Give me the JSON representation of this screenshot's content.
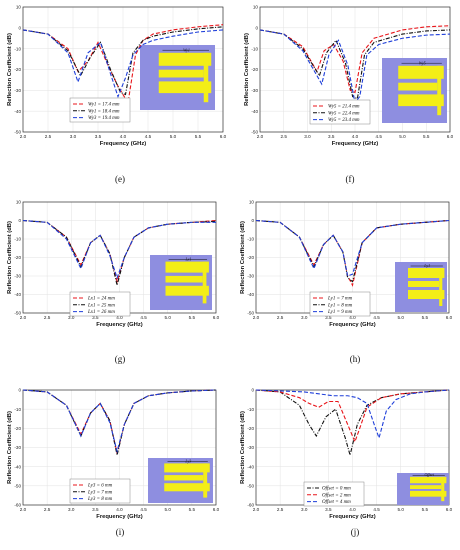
{
  "chart_data": [
    {
      "type": "line",
      "panel_label": "(e)",
      "xlabel": "Frequency (GHz)",
      "ylabel": "Reflection Coefficient (dB)",
      "xlim": [
        2.0,
        6.0
      ],
      "ylim": [
        -50,
        10
      ],
      "xticks": [
        "2.0",
        "2.5",
        "3.0",
        "3.5",
        "4.0",
        "4.5",
        "5.0",
        "5.5",
        "6.0"
      ],
      "yticks": [
        "10",
        "0",
        "-10",
        "-20",
        "-30",
        "-40",
        "-50"
      ],
      "legend_position": "bottom-left",
      "inset_label": "Wy1",
      "series": [
        {
          "name": "Wy1 = 17.4 mm",
          "color": "#e8161b",
          "dash": "dash",
          "x": [
            2.0,
            2.5,
            2.9,
            3.1,
            3.3,
            3.5,
            3.7,
            3.9,
            4.1,
            4.25,
            4.4,
            4.6,
            5.0,
            5.5,
            6.0
          ],
          "y": [
            -1,
            -3,
            -10,
            -21,
            -16,
            -7,
            -18,
            -28,
            -36,
            -13,
            -6,
            -3,
            -1,
            0.5,
            1.5
          ]
        },
        {
          "name": "Wy1 = 18.4 mm",
          "color": "#111111",
          "dash": "dashdot",
          "x": [
            2.0,
            2.5,
            2.9,
            3.15,
            3.35,
            3.55,
            3.75,
            3.95,
            4.05,
            4.2,
            4.4,
            4.6,
            5.0,
            5.5,
            6.0
          ],
          "y": [
            -1,
            -3,
            -11,
            -23,
            -14,
            -7,
            -20,
            -31,
            -32,
            -12,
            -6,
            -4,
            -2,
            -0.5,
            0.5
          ]
        },
        {
          "name": "Wy3 = 19.4 mm",
          "color": "#1f3fd9",
          "dash": "dash",
          "x": [
            2.0,
            2.5,
            2.9,
            3.1,
            3.3,
            3.55,
            3.75,
            3.9,
            4.05,
            4.2,
            4.4,
            4.6,
            5.0,
            5.5,
            6.0
          ],
          "y": [
            -1,
            -3,
            -12,
            -26,
            -12,
            -7,
            -22,
            -33,
            -24,
            -13,
            -8,
            -6,
            -4,
            -2,
            -1
          ]
        }
      ]
    },
    {
      "type": "line",
      "panel_label": "(f)",
      "xlabel": "Frequency (GHz)",
      "ylabel": "Reflection Coefficient (dB)",
      "xlim": [
        2.0,
        6.0
      ],
      "ylim": [
        -50,
        10
      ],
      "xticks": [
        "2.0",
        "2.5",
        "3.0",
        "3.5",
        "4.0",
        "4.5",
        "5.0",
        "5.5",
        "6.0"
      ],
      "yticks": [
        "10",
        "0",
        "-10",
        "-20",
        "-30",
        "-40",
        "-50"
      ],
      "legend_position": "bottom-left",
      "inset_label": "Wy5",
      "series": [
        {
          "name": "Wy5 = 21.4 mm",
          "color": "#e8161b",
          "dash": "dash",
          "x": [
            2.0,
            2.5,
            2.9,
            3.2,
            3.35,
            3.55,
            3.75,
            3.9,
            4.0,
            4.15,
            4.4,
            5.0,
            5.5,
            6.0
          ],
          "y": [
            -1,
            -3,
            -9,
            -21,
            -11,
            -8,
            -16,
            -30,
            -31,
            -12,
            -5,
            -1,
            0.5,
            1
          ]
        },
        {
          "name": "Wy5 = 22.4 mm",
          "color": "#111111",
          "dash": "dashdot",
          "x": [
            2.0,
            2.5,
            2.9,
            3.25,
            3.4,
            3.6,
            3.8,
            3.95,
            4.05,
            4.2,
            4.4,
            5.0,
            5.5,
            6.0
          ],
          "y": [
            -1,
            -3,
            -10,
            -23,
            -12,
            -6,
            -17,
            -33,
            -34,
            -13,
            -7,
            -3,
            -1.5,
            -1
          ]
        },
        {
          "name": "Wy5 = 23.4 mm",
          "color": "#1f3fd9",
          "dash": "dash",
          "x": [
            2.0,
            2.5,
            2.9,
            3.3,
            3.45,
            3.65,
            3.85,
            4.0,
            4.1,
            4.25,
            4.5,
            5.0,
            5.5,
            6.0
          ],
          "y": [
            -1,
            -3,
            -11,
            -27,
            -13,
            -6,
            -18,
            -36,
            -33,
            -13,
            -8,
            -5,
            -3.5,
            -3
          ]
        }
      ]
    },
    {
      "type": "line",
      "panel_label": "(g)",
      "xlabel": "Frequency (GHz)",
      "ylabel": "Reflection Coefficient (dB)",
      "xlim": [
        2.0,
        6.0
      ],
      "ylim": [
        -50,
        10
      ],
      "xticks": [
        "2.0",
        "2.5",
        "3.0",
        "3.5",
        "4.0",
        "4.5",
        "5.0",
        "5.5",
        "6.0"
      ],
      "yticks": [
        "10",
        "0",
        "-10",
        "-20",
        "-30",
        "-40",
        "-50"
      ],
      "legend_position": "bottom-left",
      "inset_label": "Lx1",
      "series": [
        {
          "name": "Lx1 = 24 mm",
          "color": "#e8161b",
          "dash": "dash",
          "x": [
            2.0,
            2.5,
            2.9,
            3.2,
            3.4,
            3.6,
            3.8,
            3.95,
            4.1,
            4.3,
            4.6,
            5.0,
            5.5,
            6.0
          ],
          "y": [
            0,
            -1,
            -9,
            -24,
            -12,
            -8,
            -18,
            -33,
            -20,
            -9,
            -4,
            -2,
            -1,
            0
          ]
        },
        {
          "name": "Lx1 = 25 mm",
          "color": "#111111",
          "dash": "dashdot",
          "x": [
            2.0,
            2.5,
            2.9,
            3.2,
            3.4,
            3.6,
            3.8,
            3.95,
            4.1,
            4.3,
            4.6,
            5.0,
            5.5,
            6.0
          ],
          "y": [
            0,
            -1,
            -9,
            -25,
            -12,
            -8,
            -18,
            -35,
            -20,
            -9,
            -4,
            -2,
            -1,
            -0.5
          ]
        },
        {
          "name": "Lx1 = 26 mm",
          "color": "#1f3fd9",
          "dash": "dash",
          "x": [
            2.0,
            2.5,
            2.9,
            3.2,
            3.4,
            3.6,
            3.8,
            3.95,
            4.1,
            4.3,
            4.6,
            5.0,
            5.5,
            6.0
          ],
          "y": [
            0,
            -1,
            -10,
            -26,
            -12,
            -8,
            -19,
            -31,
            -20,
            -9,
            -4,
            -2,
            -1,
            -1
          ]
        }
      ]
    },
    {
      "type": "line",
      "panel_label": "(h)",
      "xlabel": "Frequency (GHz)",
      "ylabel": "Reflection Coefficient (dB)",
      "xlim": [
        2.0,
        6.0
      ],
      "ylim": [
        -50,
        10
      ],
      "xticks": [
        "2.0",
        "2.5",
        "3.0",
        "3.5",
        "4.0",
        "4.5",
        "5.0",
        "5.5",
        "6.0"
      ],
      "yticks": [
        "10",
        "0",
        "-10",
        "-20",
        "-30",
        "-40",
        "-50"
      ],
      "legend_position": "bottom-left",
      "inset_label": "Ly1",
      "series": [
        {
          "name": "Ly1 = 7 mm",
          "color": "#e8161b",
          "dash": "dash",
          "x": [
            2.0,
            2.5,
            2.9,
            3.2,
            3.4,
            3.6,
            3.8,
            3.9,
            4.0,
            4.2,
            4.5,
            5.0,
            5.5,
            6.0
          ],
          "y": [
            0,
            -1,
            -9,
            -24,
            -13,
            -8,
            -17,
            -30,
            -35,
            -12,
            -4,
            -2,
            -1,
            0
          ]
        },
        {
          "name": "Ly1 = 8 mm",
          "color": "#111111",
          "dash": "dashdot",
          "x": [
            2.0,
            2.5,
            2.9,
            3.2,
            3.4,
            3.6,
            3.8,
            3.9,
            4.0,
            4.2,
            4.5,
            5.0,
            5.5,
            6.0
          ],
          "y": [
            0,
            -1,
            -9,
            -25,
            -13,
            -8,
            -17,
            -31,
            -33,
            -12,
            -4,
            -2,
            -1,
            0
          ]
        },
        {
          "name": "Ly1 = 9 mm",
          "color": "#1f3fd9",
          "dash": "dash",
          "x": [
            2.0,
            2.5,
            2.9,
            3.2,
            3.4,
            3.6,
            3.8,
            3.9,
            4.0,
            4.2,
            4.5,
            5.0,
            5.5,
            6.0
          ],
          "y": [
            0,
            -1,
            -9,
            -26,
            -13,
            -8,
            -17,
            -30,
            -29,
            -12,
            -4,
            -2,
            -1,
            0
          ]
        }
      ]
    },
    {
      "type": "line",
      "panel_label": "(i)",
      "xlabel": "Frequency (GHz)",
      "ylabel": "Reflection Coefficient (dB)",
      "xlim": [
        2.0,
        6.0
      ],
      "ylim": [
        -60,
        0
      ],
      "xticks": [
        "2.0",
        "2.5",
        "3.0",
        "3.5",
        "4.0",
        "4.5",
        "5.0",
        "5.5",
        "6.0"
      ],
      "yticks": [
        "0",
        "-10",
        "-20",
        "-30",
        "-40",
        "-50",
        "-60"
      ],
      "legend_position": "bottom-left",
      "inset_label": "Ly3",
      "series": [
        {
          "name": "Ly3 = 6 mm",
          "color": "#e8161b",
          "dash": "dash",
          "x": [
            2.0,
            2.5,
            2.9,
            3.2,
            3.4,
            3.6,
            3.8,
            3.95,
            4.1,
            4.3,
            4.6,
            5.0,
            5.5,
            6.0
          ],
          "y": [
            0,
            -1,
            -8,
            -23,
            -12,
            -7,
            -16,
            -33,
            -18,
            -7,
            -3,
            -1.5,
            -0.5,
            0
          ]
        },
        {
          "name": "Ly3 = 7 mm",
          "color": "#111111",
          "dash": "dashdot",
          "x": [
            2.0,
            2.5,
            2.9,
            3.2,
            3.4,
            3.6,
            3.8,
            3.95,
            4.1,
            4.3,
            4.6,
            5.0,
            5.5,
            6.0
          ],
          "y": [
            0,
            -1,
            -8,
            -24,
            -12,
            -7,
            -16,
            -34,
            -18,
            -7,
            -3,
            -1.5,
            -0.5,
            0
          ]
        },
        {
          "name": "Ly3 = 8 mm",
          "color": "#1f3fd9",
          "dash": "dash",
          "x": [
            2.0,
            2.5,
            2.9,
            3.2,
            3.4,
            3.6,
            3.8,
            3.95,
            4.1,
            4.3,
            4.6,
            5.0,
            5.5,
            6.0
          ],
          "y": [
            0,
            -1,
            -8,
            -24,
            -12,
            -7,
            -17,
            -32,
            -18,
            -7,
            -3,
            -1.5,
            -0.5,
            0
          ]
        }
      ]
    },
    {
      "type": "line",
      "panel_label": "(j)",
      "xlabel": "Frequency (GHz)",
      "ylabel": "Reflection Coefficient (dB)",
      "xlim": [
        2.0,
        6.0
      ],
      "ylim": [
        -60,
        0
      ],
      "xticks": [
        "2.0",
        "2.5",
        "3.0",
        "3.5",
        "4.0",
        "4.5",
        "5.0",
        "5.5",
        "6.0"
      ],
      "yticks": [
        "0",
        "-10",
        "-20",
        "-30",
        "-40",
        "-50",
        "-60"
      ],
      "legend_position": "bottom-left",
      "inset_label": "Offset",
      "series": [
        {
          "name": "Offset = 0 mm",
          "color": "#111111",
          "dash": "dashdot",
          "x": [
            2.0,
            2.5,
            2.9,
            3.1,
            3.25,
            3.45,
            3.65,
            3.85,
            3.95,
            4.1,
            4.3,
            4.6,
            5.0,
            5.5,
            6.0
          ],
          "y": [
            0,
            -1,
            -8,
            -18,
            -24,
            -14,
            -10,
            -25,
            -34,
            -18,
            -8,
            -4,
            -2,
            -1,
            0
          ]
        },
        {
          "name": "Offset = 2 mm",
          "color": "#e8161b",
          "dash": "dash",
          "x": [
            2.0,
            2.5,
            2.9,
            3.1,
            3.3,
            3.5,
            3.7,
            3.9,
            4.05,
            4.15,
            4.3,
            4.6,
            5.0,
            5.5,
            6.0
          ],
          "y": [
            0,
            -1,
            -4,
            -7,
            -9,
            -6,
            -6,
            -18,
            -27,
            -20,
            -9,
            -4,
            -2,
            -1,
            0
          ]
        },
        {
          "name": "Offset = 4 mm",
          "color": "#1f3fd9",
          "dash": "dash",
          "x": [
            2.0,
            2.5,
            3.0,
            3.3,
            3.6,
            3.9,
            4.1,
            4.3,
            4.45,
            4.55,
            4.7,
            4.9,
            5.2,
            5.5,
            6.0
          ],
          "y": [
            0,
            -0.5,
            -1,
            -2,
            -3,
            -3,
            -4,
            -7,
            -18,
            -25,
            -11,
            -5,
            -2,
            -1,
            0
          ]
        }
      ]
    }
  ]
}
